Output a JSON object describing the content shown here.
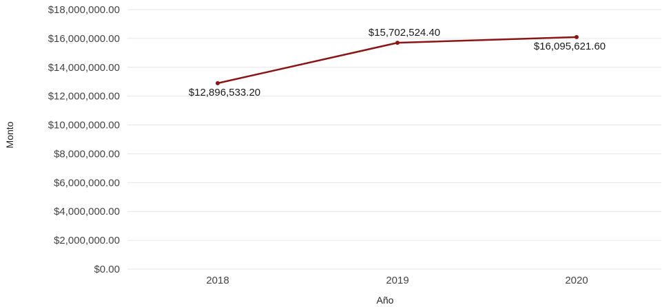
{
  "chart_data": {
    "type": "line",
    "title": "",
    "xlabel": "Año",
    "ylabel": "Monto",
    "categories": [
      "2018",
      "2019",
      "2020"
    ],
    "series": [
      {
        "values": [
          12896533.2,
          15702524.4,
          16095621.6
        ]
      }
    ],
    "data_labels": [
      "$12,896,533.20",
      "$15,702,524.40",
      "$16,095,621.60"
    ],
    "ylim": [
      0,
      18000000
    ],
    "y_ticks": [
      0,
      2000000,
      4000000,
      6000000,
      8000000,
      10000000,
      12000000,
      14000000,
      16000000,
      18000000
    ],
    "y_tick_labels": [
      "$0.00",
      "$2,000,000.00",
      "$4,000,000.00",
      "$6,000,000.00",
      "$8,000,000.00",
      "$10,000,000.00",
      "$12,000,000.00",
      "$14,000,000.00",
      "$16,000,000.00",
      "$18,000,000.00"
    ],
    "grid": true,
    "legend": "none",
    "colors": {
      "line": "#8b1414",
      "point": "#8b1414",
      "grid": "#e6e6e6"
    }
  }
}
